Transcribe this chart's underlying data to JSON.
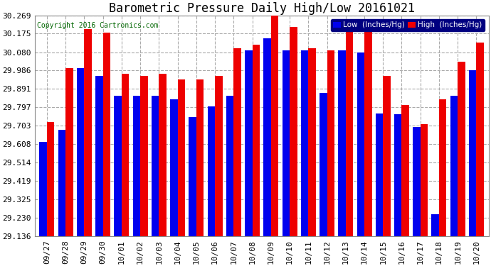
{
  "title": "Barometric Pressure Daily High/Low 20161021",
  "copyright": "Copyright 2016 Cartronics.com",
  "legend_low": "Low  (Inches/Hg)",
  "legend_high": "High  (Inches/Hg)",
  "dates": [
    "09/27",
    "09/28",
    "09/29",
    "09/30",
    "10/01",
    "10/02",
    "10/03",
    "10/04",
    "10/05",
    "10/06",
    "10/07",
    "10/08",
    "10/09",
    "10/10",
    "10/11",
    "10/12",
    "10/13",
    "10/14",
    "10/15",
    "10/16",
    "10/17",
    "10/18",
    "10/19",
    "10/20"
  ],
  "low_values": [
    29.62,
    29.68,
    30.0,
    29.96,
    29.858,
    29.858,
    29.858,
    29.84,
    29.748,
    29.8,
    29.858,
    30.09,
    30.15,
    30.09,
    30.09,
    29.87,
    30.09,
    30.08,
    29.765,
    29.762,
    29.695,
    29.25,
    29.858,
    29.986
  ],
  "high_values": [
    29.72,
    30.0,
    30.2,
    30.18,
    29.97,
    29.96,
    29.97,
    29.94,
    29.94,
    29.96,
    30.1,
    30.12,
    30.269,
    30.21,
    30.1,
    30.09,
    30.21,
    30.185,
    29.96,
    29.81,
    29.71,
    29.84,
    30.03,
    30.13
  ],
  "ylim_min": 29.136,
  "ylim_max": 30.269,
  "yticks": [
    29.136,
    29.23,
    29.325,
    29.419,
    29.514,
    29.608,
    29.703,
    29.797,
    29.891,
    29.986,
    30.08,
    30.175,
    30.269
  ],
  "low_color": "#0000ee",
  "high_color": "#ee0000",
  "bg_color": "#ffffff",
  "grid_color": "#aaaaaa",
  "title_fontsize": 12,
  "tick_fontsize": 8,
  "bar_width": 0.4
}
